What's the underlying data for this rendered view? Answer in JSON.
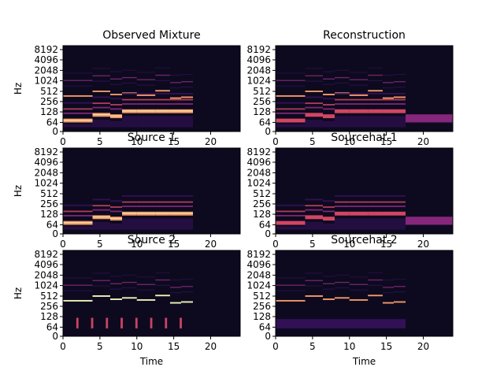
{
  "chart_data": [
    {
      "type": "heatmap",
      "title": "Observed Mixture",
      "ylabel": "Hz",
      "xlabel": "",
      "x_ticks": [
        "0",
        "5",
        "10",
        "15",
        "20"
      ],
      "y_ticks": [
        "0",
        "64",
        "128",
        "256",
        "512",
        "1024",
        "2048",
        "4096",
        "8192"
      ],
      "xlim": [
        0,
        24
      ],
      "y_scale": "log2",
      "colormap": "magma",
      "notes_time_ranges": [
        [
          0,
          4
        ],
        [
          4,
          6.5
        ],
        [
          6.5,
          8
        ],
        [
          8,
          10
        ],
        [
          10,
          12.5
        ],
        [
          12.5,
          14.5
        ],
        [
          14.5,
          16
        ],
        [
          16,
          17.5
        ]
      ],
      "active_until": 17.5
    },
    {
      "type": "heatmap",
      "title": "Reconstruction",
      "ylabel": "",
      "xlabel": "",
      "x_ticks": [
        "0",
        "5",
        "10",
        "15",
        "20"
      ],
      "y_ticks": [
        "0",
        "64",
        "128",
        "256",
        "512",
        "1024",
        "2048",
        "4096",
        "8192"
      ],
      "xlim": [
        0,
        24
      ],
      "y_scale": "log2",
      "colormap": "magma",
      "tail_band_hz": [
        64,
        110
      ],
      "active_until": 24
    },
    {
      "type": "heatmap",
      "title": "Source 1",
      "ylabel": "Hz",
      "xlabel": "",
      "x_ticks": [
        "0",
        "5",
        "10",
        "15",
        "20"
      ],
      "y_ticks": [
        "0",
        "64",
        "128",
        "256",
        "512",
        "1024",
        "2048",
        "4096",
        "8192"
      ],
      "xlim": [
        0,
        24
      ],
      "y_scale": "log2",
      "colormap": "magma",
      "active_until": 17.5
    },
    {
      "type": "heatmap",
      "title": "Sourcehat 1",
      "ylabel": "",
      "xlabel": "",
      "x_ticks": [
        "0",
        "5",
        "10",
        "15",
        "20"
      ],
      "y_ticks": [
        "0",
        "64",
        "128",
        "256",
        "512",
        "1024",
        "2048",
        "4096",
        "8192"
      ],
      "xlim": [
        0,
        24
      ],
      "y_scale": "log2",
      "colormap": "magma",
      "tail_band_hz": [
        64,
        110
      ],
      "active_until": 24
    },
    {
      "type": "heatmap",
      "title": "Source 2",
      "ylabel": "Hz",
      "xlabel": "Time",
      "x_ticks": [
        "0",
        "5",
        "10",
        "15",
        "20"
      ],
      "y_ticks": [
        "0",
        "64",
        "128",
        "256",
        "512",
        "1024",
        "2048",
        "4096",
        "8192"
      ],
      "xlim": [
        0,
        24
      ],
      "y_scale": "log2",
      "colormap": "magma",
      "active_until": 17.5
    },
    {
      "type": "heatmap",
      "title": "Sourcehat 2",
      "ylabel": "",
      "xlabel": "Time",
      "x_ticks": [
        "0",
        "5",
        "10",
        "15",
        "20"
      ],
      "y_ticks": [
        "0",
        "64",
        "128",
        "256",
        "512",
        "1024",
        "2048",
        "4096",
        "8192"
      ],
      "xlim": [
        0,
        24
      ],
      "y_scale": "log2",
      "colormap": "magma",
      "active_until": 17.5
    }
  ],
  "colors": {
    "background": "#0d0a1f",
    "low": "#3b1163",
    "mid": "#8c2981",
    "high": "#de4968",
    "peak": "#fe9f6d",
    "max": "#fcfdbf"
  }
}
